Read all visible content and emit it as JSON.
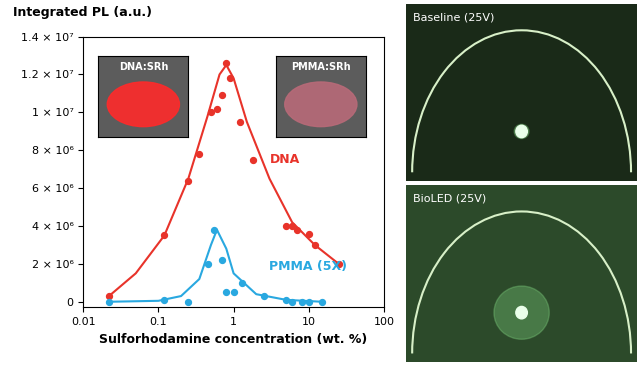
{
  "chart_data": {
    "type": "scatter",
    "xlabel": "Sulforhodamine concentration (wt. %)",
    "ylabel": "Integrated PL (a.u.)",
    "log": "x",
    "xlim": [
      0.01,
      100
    ],
    "xticks": [
      0.01,
      0.1,
      1,
      10,
      100
    ],
    "ylim": [
      -300000,
      14000000
    ],
    "yticks": [
      0,
      {
        "value": 2000000,
        "label": "2 × 10⁶"
      },
      {
        "value": 4000000,
        "label": "4 × 10⁶"
      },
      {
        "value": 6000000,
        "label": "6 × 10⁶"
      },
      {
        "value": 8000000,
        "label": "8 × 10⁶"
      },
      {
        "value": 10000000,
        "label": "1 × 10⁷"
      },
      {
        "value": 12000000,
        "label": "1.2 × 10⁷"
      },
      {
        "value": 14000000,
        "label": "1.4 × 10⁷"
      }
    ],
    "annotations": [
      "DNA:SRh",
      "PMMA:SRh"
    ],
    "series": [
      {
        "name": "DNA",
        "type": "scatter",
        "marker": "circle",
        "color": "#e8332a",
        "x": [
          0.022,
          0.12,
          0.25,
          0.35,
          0.5,
          0.6,
          0.7,
          0.8,
          0.9,
          1.2,
          1.8,
          5,
          6,
          7,
          10,
          12,
          25
        ],
        "values": [
          300000,
          3500000,
          6400000,
          7800000,
          10000000,
          10200000,
          10900000,
          12600000,
          11800000,
          9500000,
          7500000,
          4000000,
          4000000,
          3800000,
          3600000,
          3000000,
          2000000
        ]
      },
      {
        "type": "line",
        "line_style": "solid",
        "color": "#e8332a",
        "x": [
          0.022,
          0.05,
          0.12,
          0.25,
          0.45,
          0.65,
          0.8,
          1.0,
          1.5,
          3,
          6,
          12,
          25
        ],
        "values": [
          300000,
          1500000,
          3500000,
          6500000,
          9800000,
          12000000,
          12500000,
          11800000,
          9500000,
          6500000,
          4200000,
          3000000,
          2000000
        ]
      },
      {
        "name": "PMMA (5X)",
        "type": "scatter",
        "marker": "circle",
        "color": "#29a8e0",
        "x": [
          0.022,
          0.12,
          0.25,
          0.45,
          0.55,
          0.7,
          0.8,
          1.0,
          1.3,
          2.5,
          5,
          6,
          8,
          10,
          15
        ],
        "values": [
          0,
          100000,
          0,
          2000000,
          3800000,
          2200000,
          500000,
          500000,
          1000000,
          300000,
          100000,
          0,
          0,
          0,
          0
        ]
      },
      {
        "type": "line",
        "line_style": "solid",
        "color": "#29a8e0",
        "x": [
          0.022,
          0.1,
          0.2,
          0.35,
          0.5,
          0.6,
          0.8,
          1.0,
          2,
          5,
          15
        ],
        "values": [
          0,
          50000,
          300000,
          1200000,
          3000000,
          3800000,
          2800000,
          1500000,
          400000,
          100000,
          0
        ]
      }
    ]
  },
  "photos": [
    "Baseline (25V)",
    "BioLED (25V)"
  ]
}
